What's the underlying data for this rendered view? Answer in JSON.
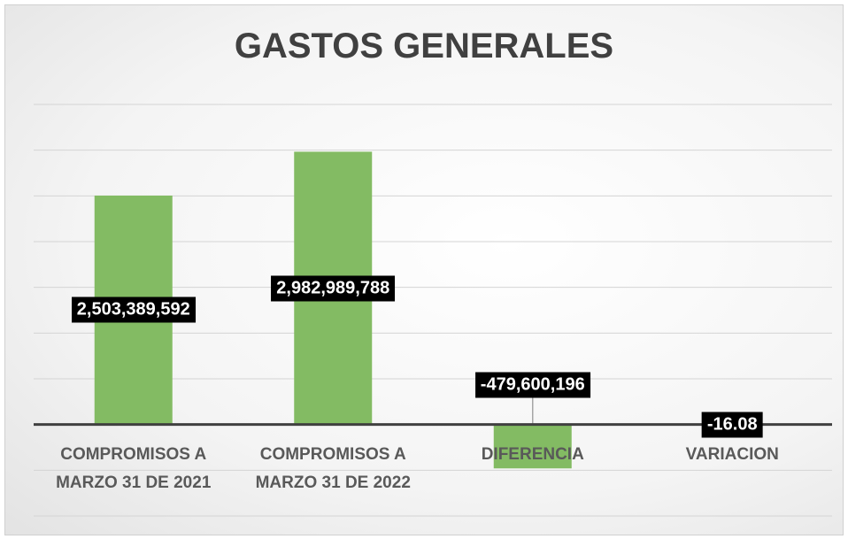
{
  "chart_data": {
    "type": "bar",
    "title": "GASTOS GENERALES",
    "categories": [
      "COMPROMISOS A MARZO 31 DE 2021",
      "COMPROMISOS A MARZO 31 DE 2022",
      "DIFERENCIA",
      "VARIACION"
    ],
    "values": [
      2503389592,
      2982989788,
      -479600196,
      -16.08
    ],
    "value_labels": [
      "2,503,389,592",
      "2,982,989,788",
      "-479,600,196",
      "-16.08"
    ],
    "color": "#83bb63",
    "ylim": [
      -1000000000,
      3500000000
    ],
    "yticks": [
      -1000000000,
      -500000000,
      0,
      500000000,
      1000000000,
      1500000000,
      2000000000,
      2500000000,
      3000000000,
      3500000000
    ],
    "grid": true
  }
}
